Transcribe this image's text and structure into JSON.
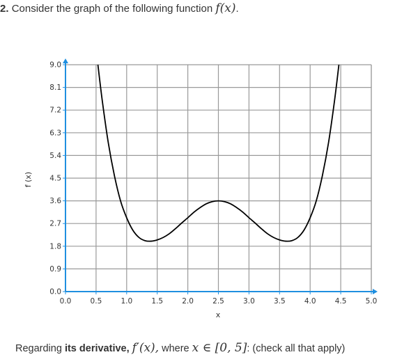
{
  "question": {
    "number": "2.",
    "text": "Consider the graph of the following function",
    "func": "f(x)",
    "end": "."
  },
  "chart_data": {
    "type": "line",
    "title": "",
    "xlabel": "x",
    "ylabel": "f (x)",
    "xlim": [
      0,
      5
    ],
    "ylim": [
      0,
      9
    ],
    "x_ticks": [
      "0.0",
      "0.5",
      "1.0",
      "1.5",
      "2.0",
      "2.5",
      "3.0",
      "3.5",
      "4.0",
      "4.5",
      "5.0"
    ],
    "y_ticks": [
      "0.0",
      "0.9",
      "1.8",
      "2.7",
      "3.6",
      "4.5",
      "5.4",
      "6.3",
      "7.2",
      "8.1",
      "9.0"
    ],
    "grid": true,
    "axis_color": "#1f8fe0",
    "line_color": "#000000",
    "series": [
      {
        "x": [
          0.53,
          0.6,
          0.7,
          0.8,
          0.9,
          1.0,
          1.1,
          1.2,
          1.3,
          1.4,
          1.5,
          1.6,
          1.7,
          1.8,
          1.9,
          2.0,
          2.1,
          2.2,
          2.3,
          2.4,
          2.5,
          2.6,
          2.7,
          2.8,
          2.9,
          3.0,
          3.1,
          3.2,
          3.3,
          3.4,
          3.5,
          3.6,
          3.7,
          3.8,
          3.9,
          4.0,
          4.1,
          4.2,
          4.3,
          4.4,
          4.47
        ],
        "y": [
          9.0,
          7.6,
          5.9,
          4.6,
          3.6,
          2.93,
          2.44,
          2.15,
          2.02,
          2.0,
          2.05,
          2.15,
          2.3,
          2.5,
          2.72,
          2.93,
          3.15,
          3.33,
          3.48,
          3.57,
          3.6,
          3.57,
          3.48,
          3.33,
          3.15,
          2.93,
          2.72,
          2.5,
          2.3,
          2.15,
          2.05,
          2.0,
          2.02,
          2.15,
          2.44,
          2.93,
          3.6,
          4.6,
          5.9,
          7.6,
          9.0
        ]
      }
    ]
  },
  "footer": {
    "prefix": "Regarding",
    "bold": "its derivative,",
    "deriv": "f′(x),",
    "where": "where",
    "domain": "x ∈ [0, 5]",
    "suffix": ": (check all that apply)"
  }
}
